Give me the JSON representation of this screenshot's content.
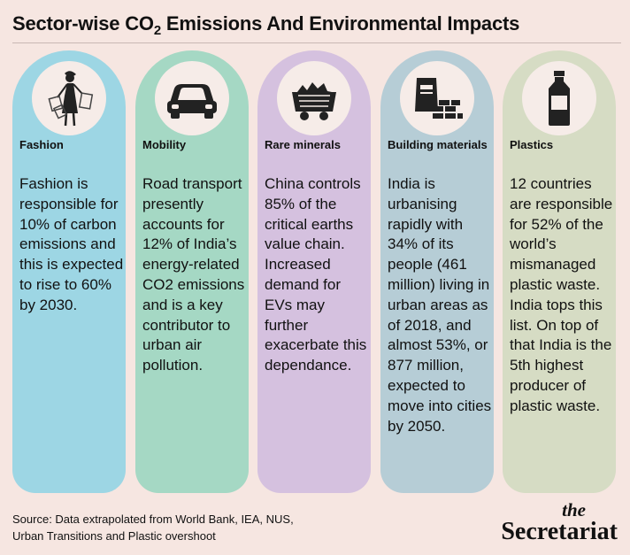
{
  "title": {
    "main": "Sector-wise CO",
    "sub": "2",
    "rest": " Emissions And Environmental Impacts"
  },
  "colors": {
    "background": "#f6e6e1",
    "fashion": "#9dd6e4",
    "mobility": "#a5d8c4",
    "rare_minerals": "#d5c1df",
    "building": "#b6cdd6",
    "plastics": "#d6dcc4"
  },
  "cards": [
    {
      "icon": "shopper-icon",
      "category": "Fashion",
      "text": "Fashion is responsible for 10% of carbon emissions and this is expected to rise to 60% by 2030."
    },
    {
      "icon": "car-icon",
      "category": "Mobility",
      "text": "Road transport presently accounts for 12% of India’s energy-related CO2 emissions and is a key contributor to urban air pollution."
    },
    {
      "icon": "mine-cart-icon",
      "category": "Rare minerals",
      "text": "China controls 85% of the critical earths value chain. Increased demand for EVs may further exacerbate this dependance."
    },
    {
      "icon": "cement-bricks-icon",
      "category": "Building materials",
      "text": "India is urbanising rapidly with 34% of its people (461 million) living in urban areas as of 2018, and almost 53%, or 877 million, expected to move into cities by 2050."
    },
    {
      "icon": "plastic-bottle-icon",
      "category": "Plastics",
      "text": "12 countries are responsible for 52% of the world’s mismanaged plastic waste. India tops this list. On top of that India is the 5th highest producer of plastic waste."
    }
  ],
  "source": "Source: Data extrapolated from World Bank, IEA, NUS,\nUrban Transitions and Plastic overshoot",
  "brand": {
    "the": "the",
    "name": "Secretariat"
  }
}
